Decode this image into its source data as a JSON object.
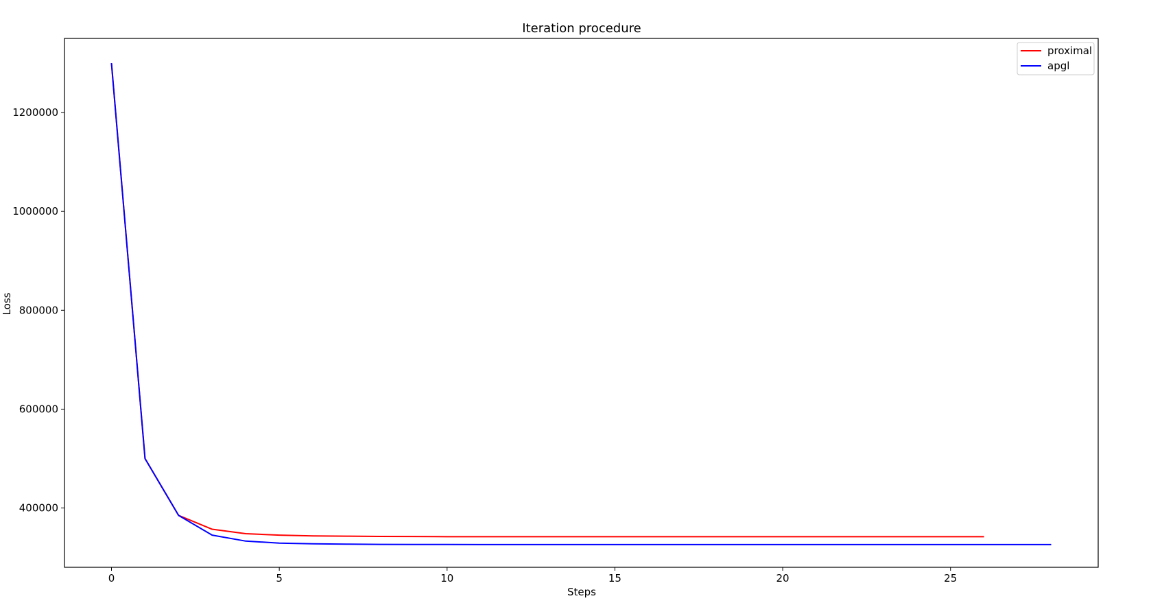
{
  "chart_data": {
    "type": "line",
    "title": "Iteration procedure",
    "xlabel": "Steps",
    "ylabel": "Loss",
    "xlim": [
      -1.4,
      29.4
    ],
    "ylim": [
      280000,
      1350000
    ],
    "xticks": [
      0,
      5,
      10,
      15,
      20,
      25
    ],
    "yticks": [
      400000,
      600000,
      800000,
      1000000,
      1200000
    ],
    "grid": false,
    "legend_position": "top-right",
    "series": [
      {
        "name": "proximal",
        "color": "#ff0000",
        "x": [
          0,
          1,
          2,
          3,
          4,
          5,
          6,
          7,
          8,
          9,
          10,
          11,
          12,
          13,
          14,
          15,
          16,
          17,
          18,
          19,
          20,
          21,
          22,
          23,
          24,
          25,
          26
        ],
        "values": [
          1300000,
          500000,
          385000,
          357000,
          348000,
          345000,
          343500,
          343000,
          342500,
          342200,
          342000,
          342000,
          342000,
          342000,
          342000,
          342000,
          342000,
          342000,
          342000,
          342000,
          342000,
          342000,
          342000,
          342000,
          342000,
          342000,
          342000
        ]
      },
      {
        "name": "apgl",
        "color": "#0000ff",
        "x": [
          0,
          1,
          2,
          3,
          4,
          5,
          6,
          7,
          8,
          9,
          10,
          11,
          12,
          13,
          14,
          15,
          16,
          17,
          18,
          19,
          20,
          21,
          22,
          23,
          24,
          25,
          26,
          27,
          28
        ],
        "values": [
          1300000,
          500000,
          385000,
          345000,
          333000,
          329000,
          327500,
          326800,
          326400,
          326200,
          326100,
          326000,
          326000,
          326000,
          326000,
          326000,
          326000,
          326000,
          326000,
          326000,
          326000,
          326000,
          326000,
          326000,
          326000,
          326000,
          326000,
          326000,
          326000
        ]
      }
    ]
  }
}
